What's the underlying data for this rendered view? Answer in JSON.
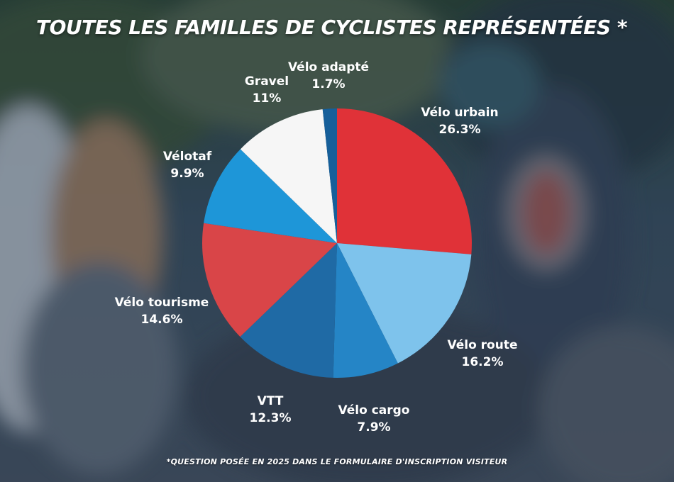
{
  "title": "TOUTES LES FAMILLES DE CYCLISTES REPRÉSENTÉES *",
  "footnote": "*QUESTION POSÉE EN 2025 DANS LE FORMULAIRE D'INSCRIPTION VISITEUR",
  "chart_data": {
    "type": "pie",
    "title": "TOUTES LES FAMILLES DE CYCLISTES REPRÉSENTÉES *",
    "start": "12 o'clock",
    "direction": "clockwise",
    "slices": [
      {
        "label": "Vélo urbain",
        "value_label": "26.3%",
        "value": 26.3,
        "color": "#e03238"
      },
      {
        "label": "Vélo route",
        "value_label": "16.2%",
        "value": 16.2,
        "color": "#7ec3ec"
      },
      {
        "label": "Vélo cargo",
        "value_label": "7.9%",
        "value": 7.9,
        "color": "#2585c6"
      },
      {
        "label": "VTT",
        "value_label": "12.3%",
        "value": 12.3,
        "color": "#1f6aa5"
      },
      {
        "label": "Vélo tourisme",
        "value_label": "14.6%",
        "value": 14.6,
        "color": "#d94548"
      },
      {
        "label": "Vélotaf",
        "value_label": "9.9%",
        "value": 9.9,
        "color": "#1e96d8"
      },
      {
        "label": "Gravel",
        "value_label": "11%",
        "value": 11,
        "color": "#f6f6f6"
      },
      {
        "label": "Vélo adapté",
        "value_label": "1.7%",
        "value": 1.7,
        "color": "#165f9a"
      }
    ]
  }
}
